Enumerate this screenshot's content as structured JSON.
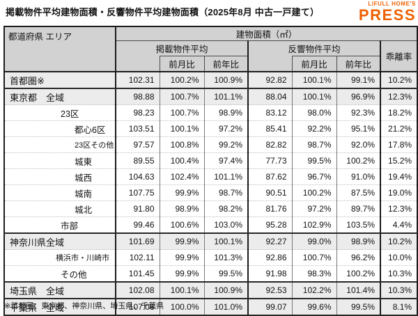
{
  "title": "掲載物件平均建物面積・反響物件平均建物面積（2025年8月 中古一戸建て）",
  "logo": {
    "line1": "LIFULL HOME'S",
    "line2": "PRESS",
    "color": "#ed6103"
  },
  "table": {
    "headers": {
      "area": "都道府県 エリア",
      "group": "建物面積（㎡）",
      "listed": "掲載物件平均",
      "response": "反響物件平均",
      "mom": "前月比",
      "yoy": "前年比",
      "divergence": "乖離率"
    },
    "rows": [
      {
        "area": "首都圏※",
        "indent": 0,
        "shaded": true,
        "section_end": true,
        "listed": "102.31",
        "listed_mom": "100.2%",
        "listed_yoy": "100.9%",
        "response": "92.82",
        "response_mom": "100.1%",
        "response_yoy": "99.1%",
        "divergence": "10.2%"
      },
      {
        "area": "東京都",
        "area_sub": "全域",
        "indent": 0,
        "shaded": true,
        "listed": "98.88",
        "listed_mom": "100.7%",
        "listed_yoy": "101.1%",
        "response": "88.04",
        "response_mom": "100.1%",
        "response_yoy": "96.9%",
        "divergence": "12.3%"
      },
      {
        "area": "23区",
        "indent": 1,
        "listed": "98.23",
        "listed_mom": "100.7%",
        "listed_yoy": "98.9%",
        "response": "83.12",
        "response_mom": "98.0%",
        "response_yoy": "92.3%",
        "divergence": "18.2%"
      },
      {
        "area": "都心6区",
        "indent": 2,
        "listed": "103.51",
        "listed_mom": "100.1%",
        "listed_yoy": "97.2%",
        "response": "85.41",
        "response_mom": "92.2%",
        "response_yoy": "95.1%",
        "divergence": "21.2%"
      },
      {
        "area": "23区その他",
        "indent": 2,
        "small": true,
        "listed": "97.57",
        "listed_mom": "100.8%",
        "listed_yoy": "99.2%",
        "response": "82.82",
        "response_mom": "98.7%",
        "response_yoy": "92.0%",
        "divergence": "17.8%"
      },
      {
        "area": "城東",
        "indent": 2,
        "listed": "89.55",
        "listed_mom": "100.4%",
        "listed_yoy": "97.4%",
        "response": "77.73",
        "response_mom": "99.5%",
        "response_yoy": "100.2%",
        "divergence": "15.2%"
      },
      {
        "area": "城西",
        "indent": 2,
        "listed": "104.63",
        "listed_mom": "102.4%",
        "listed_yoy": "101.1%",
        "response": "87.62",
        "response_mom": "96.7%",
        "response_yoy": "91.0%",
        "divergence": "19.4%"
      },
      {
        "area": "城南",
        "indent": 2,
        "listed": "107.75",
        "listed_mom": "99.9%",
        "listed_yoy": "98.7%",
        "response": "90.51",
        "response_mom": "100.2%",
        "response_yoy": "87.5%",
        "divergence": "19.0%"
      },
      {
        "area": "城北",
        "indent": 2,
        "listed": "91.80",
        "listed_mom": "98.9%",
        "listed_yoy": "98.2%",
        "response": "81.76",
        "response_mom": "97.2%",
        "response_yoy": "89.7%",
        "divergence": "12.3%"
      },
      {
        "area": "市部",
        "indent": 1,
        "section_end": true,
        "listed": "99.46",
        "listed_mom": "100.6%",
        "listed_yoy": "103.0%",
        "response": "95.28",
        "response_mom": "102.9%",
        "response_yoy": "103.5%",
        "divergence": "4.4%"
      },
      {
        "area": "神奈川県",
        "area_sub": "全域",
        "indent": 0,
        "shaded": true,
        "listed": "101.69",
        "listed_mom": "99.9%",
        "listed_yoy": "100.1%",
        "response": "92.27",
        "response_mom": "99.0%",
        "response_yoy": "98.9%",
        "divergence": "10.2%"
      },
      {
        "area": "横浜市・川崎市",
        "indent": 1,
        "small": true,
        "listed": "102.11",
        "listed_mom": "99.9%",
        "listed_yoy": "101.3%",
        "response": "92.86",
        "response_mom": "100.7%",
        "response_yoy": "96.2%",
        "divergence": "10.0%"
      },
      {
        "area": "その他",
        "indent": 1,
        "section_end": true,
        "listed": "101.45",
        "listed_mom": "99.9%",
        "listed_yoy": "99.5%",
        "response": "91.98",
        "response_mom": "98.3%",
        "response_yoy": "100.2%",
        "divergence": "10.3%"
      },
      {
        "area": "埼玉県",
        "area_sub": "全域",
        "indent": 0,
        "shaded": true,
        "section_end": true,
        "listed": "102.08",
        "listed_mom": "100.1%",
        "listed_yoy": "100.9%",
        "response": "92.53",
        "response_mom": "102.2%",
        "response_yoy": "101.4%",
        "divergence": "10.3%"
      },
      {
        "area": "千葉県",
        "area_sub": "全域",
        "indent": 0,
        "shaded": true,
        "section_end": true,
        "listed": "107.06",
        "listed_mom": "100.0%",
        "listed_yoy": "101.0%",
        "response": "99.07",
        "response_mom": "99.6%",
        "response_yoy": "99.5%",
        "divergence": "8.1%"
      }
    ]
  },
  "footnote": "※首都圏：東京都、神奈川県、埼玉県、千葉県"
}
